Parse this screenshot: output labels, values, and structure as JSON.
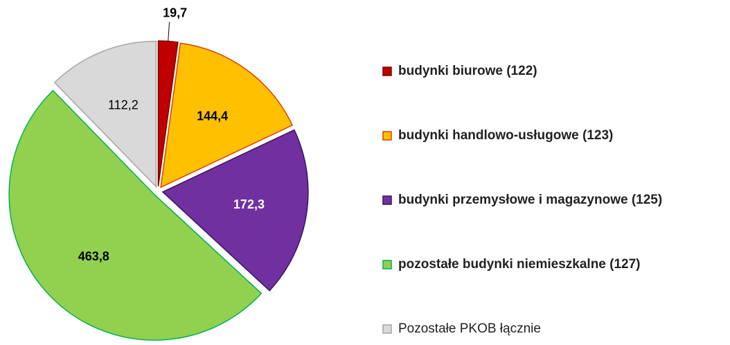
{
  "chart_data": {
    "type": "pie",
    "categories": [
      "budynki biurowe (122)",
      "budynki handlowo-usługowe (123)",
      "budynki przemysłowe i magazynowe (125)",
      "pozostałe budynki niemieszkalne (127)",
      "Pozostałe PKOB łącznie"
    ],
    "values": [
      19.7,
      144.4,
      172.3,
      463.8,
      112.2
    ],
    "value_labels": [
      "19,7",
      "144,4",
      "172,3",
      "463,8",
      "112,2"
    ],
    "colors": [
      "#c00000",
      "#ffc000",
      "#7030a0",
      "#92d050",
      "#d9d9d9"
    ],
    "border_colors": [
      "#7a0000",
      "#e04000",
      "#3a1560",
      "#00b050",
      "#a6a6a6"
    ],
    "label_colors": [
      "#000000",
      "#000000",
      "#ffffff",
      "#000000",
      "#000000"
    ],
    "legend": "right"
  }
}
